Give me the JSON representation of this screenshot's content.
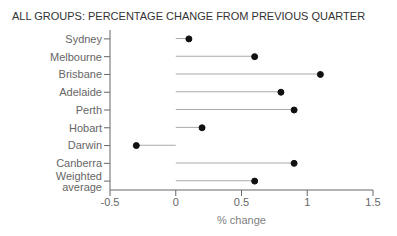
{
  "chart_data": {
    "type": "lollipop",
    "orientation": "horizontal",
    "title": "ALL GROUPS: PERCENTAGE CHANGE FROM PREVIOUS QUARTER",
    "xlabel": "% change",
    "categories": [
      "Sydney",
      "Melbourne",
      "Brisbane",
      "Adelaide",
      "Perth",
      "Hobart",
      "Darwin",
      "Canberra",
      "Weighted average"
    ],
    "values": [
      0.1,
      0.6,
      1.1,
      0.8,
      0.9,
      0.2,
      -0.3,
      0.9,
      0.6
    ],
    "xlim": [
      -0.5,
      1.5
    ],
    "xticks": [
      -0.5,
      0,
      0.5,
      1,
      1.5
    ],
    "color": "#111111",
    "grid": false
  }
}
